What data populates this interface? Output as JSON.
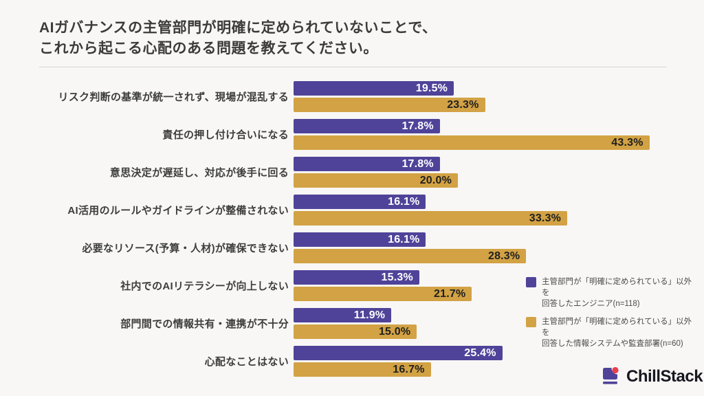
{
  "title": {
    "line1": "AIガバナンスの主管部門が明確に定められていないことで、",
    "line2": "これから起こる心配のある問題を教えてください。"
  },
  "chart_data": {
    "type": "bar",
    "orientation": "horizontal",
    "categories": [
      "リスク判断の基準が統一されず、現場が混乱する",
      "責任の押し付け合いになる",
      "意思決定が遅延し、対応が後手に回る",
      "AI活用のルールやガイドラインが整備されない",
      "必要なリソース(予算・人材)が確保できない",
      "社内でのAIリテラシーが向上しない",
      "部門間での情報共有・連携が不十分",
      "心配なことはない"
    ],
    "series": [
      {
        "name": "主管部門が「明確に定められている」以外を回答したエンジニア(n=118)",
        "color": "#4F4399",
        "label_color": "#FFFFFF",
        "values": [
          19.5,
          17.8,
          17.8,
          16.1,
          16.1,
          15.3,
          11.9,
          25.4
        ]
      },
      {
        "name": "主管部門が「明確に定められている」以外を回答した情報システムや監査部署(n=60)",
        "color": "#D2A244",
        "label_color": "#1F1F1F",
        "values": [
          23.3,
          43.3,
          20.0,
          33.3,
          28.3,
          21.7,
          15.0,
          16.7
        ]
      }
    ],
    "value_suffix": "%",
    "xlim": [
      0,
      45
    ],
    "value_labels": "inside-end",
    "grid": false,
    "legend_position": "right-middle"
  },
  "legend": {
    "items": [
      {
        "color": "#4F4399",
        "line1": "主管部門が「明確に定められている」以外を",
        "line2": "回答したエンジニア(n=118)"
      },
      {
        "color": "#D2A244",
        "line1": "主管部門が「明確に定められている」以外を",
        "line2": "回答した情報システムや監査部署(n=60)"
      }
    ]
  },
  "logo": {
    "text": "ChillStack"
  },
  "colors": {
    "background": "#F8F7F5",
    "title_text": "#3B3B3B",
    "divider": "#D5D4D2",
    "purple": "#4F4399",
    "gold": "#D2A244",
    "logo_red": "#E8404F",
    "logo_text": "#17171F"
  }
}
